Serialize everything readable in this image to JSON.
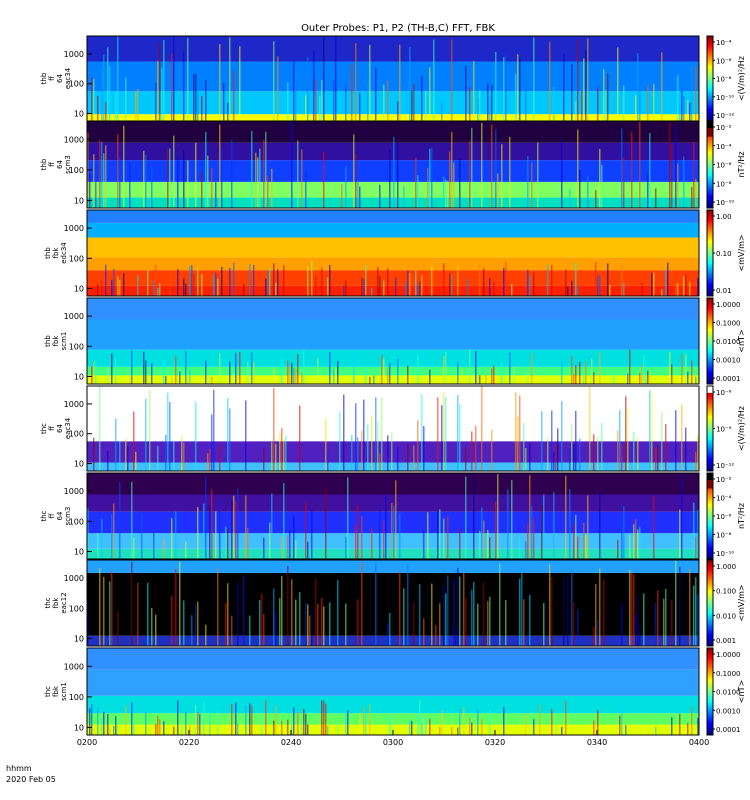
{
  "title": "Outer Probes: P1, P2 (TH-B,C) FFT, FBK",
  "footer": {
    "time_format": "hhmm",
    "date": "2020 Feb 05"
  },
  "chart_data": {
    "type": "heatmap",
    "x_ticks": [
      "0200",
      "0220",
      "0240",
      "0300",
      "0320",
      "0340",
      "0400"
    ],
    "x_range": [
      "0200",
      "0400"
    ],
    "y_scale": "log",
    "panels": [
      {
        "id": "thb-ffp-eac34",
        "ylabel": [
          "thb",
          "ff",
          "64",
          "eac34"
        ],
        "yticks": [
          "1000",
          "100",
          "10"
        ],
        "colorbar": {
          "label": "<(V/m)²/Hz",
          "ticks": [
            "10⁻⁴",
            "10⁻⁶",
            "10⁻⁸",
            "10⁻¹⁰",
            "10⁻¹²"
          ]
        }
      },
      {
        "id": "thb-ffp-scm3",
        "ylabel": [
          "thb",
          "ff",
          "64",
          "scm3"
        ],
        "yticks": [
          "1000",
          "100",
          "10"
        ],
        "colorbar": {
          "label": "nT²/Hz",
          "ticks": [
            "10⁻²",
            "10⁻⁴",
            "10⁻⁶",
            "10⁻⁸",
            "10⁻¹⁰"
          ]
        }
      },
      {
        "id": "thb-fbk-edc34",
        "ylabel": [
          "thb",
          "fbk",
          "edc34"
        ],
        "yticks": [
          "1000",
          "100",
          "10"
        ],
        "colorbar": {
          "label": "<mV/m>",
          "ticks": [
            "1.00",
            "0.10",
            "0.01"
          ]
        }
      },
      {
        "id": "thb-fbk-scm1",
        "ylabel": [
          "thb",
          "fbk",
          "scm1"
        ],
        "yticks": [
          "1000",
          "100",
          "10"
        ],
        "colorbar": {
          "label": "<nT>",
          "ticks": [
            "1.0000",
            "0.1000",
            "0.0100",
            "0.0010",
            "0.0001"
          ]
        }
      },
      {
        "id": "thc-ffp-eac34",
        "ylabel": [
          "thc",
          "ff",
          "64",
          "eac34"
        ],
        "yticks": [
          "1000",
          "100",
          "10"
        ],
        "colorbar": {
          "label": "<(V/m)²/Hz",
          "ticks": [
            "10⁻⁶",
            "10⁻⁹",
            "10⁻¹²"
          ]
        }
      },
      {
        "id": "thc-ffp-scm3",
        "ylabel": [
          "thc",
          "ff",
          "64",
          "scm3"
        ],
        "yticks": [
          "1000",
          "100",
          "10"
        ],
        "colorbar": {
          "label": "nT²/Hz",
          "ticks": [
            "10⁻²",
            "10⁻⁴",
            "10⁻⁶",
            "10⁻⁸",
            "10⁻¹⁰"
          ]
        }
      },
      {
        "id": "thc-fbk-eac12",
        "ylabel": [
          "thc",
          "fbk",
          "eac12"
        ],
        "yticks": [
          "1000",
          "100",
          "10"
        ],
        "colorbar": {
          "label": "<mV/m>",
          "ticks": [
            "1.000",
            "0.100",
            "0.010",
            "0.001"
          ]
        }
      },
      {
        "id": "thc-fbk-scm1",
        "ylabel": [
          "thc",
          "fbk",
          "scm1"
        ],
        "yticks": [
          "1000",
          "100",
          "10"
        ],
        "colorbar": {
          "label": "<nT>",
          "ticks": [
            "1.0000",
            "0.1000",
            "0.0100",
            "0.0010",
            "0.0001"
          ]
        }
      }
    ]
  }
}
